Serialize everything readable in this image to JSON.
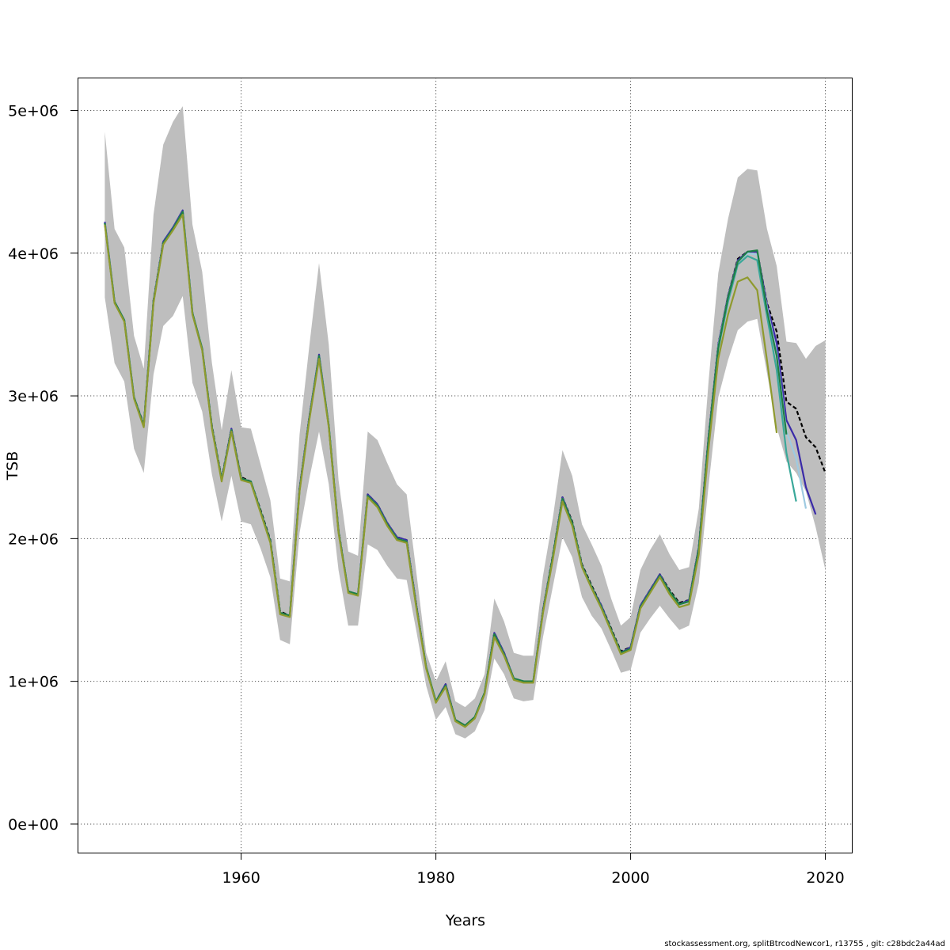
{
  "chart_data": {
    "type": "line",
    "title": "",
    "xlabel": "Years",
    "ylabel": "TSB",
    "xlim": [
      1943.2,
      2022.8
    ],
    "ylim": [
      -200000,
      5230000
    ],
    "x_ticks": [
      1960,
      1980,
      2000,
      2020
    ],
    "x_tick_labels": [
      "1960",
      "1980",
      "2000",
      "2020"
    ],
    "y_ticks": [
      0,
      1000000,
      2000000,
      3000000,
      4000000,
      5000000
    ],
    "y_tick_labels": [
      "0e+00",
      "1e+06",
      "2e+06",
      "3e+06",
      "4e+06",
      "5e+06"
    ],
    "grid": true,
    "legend": "none",
    "years": [
      1946,
      1947,
      1948,
      1949,
      1950,
      1951,
      1952,
      1953,
      1954,
      1955,
      1956,
      1957,
      1958,
      1959,
      1960,
      1961,
      1962,
      1963,
      1964,
      1965,
      1966,
      1967,
      1968,
      1969,
      1970,
      1971,
      1972,
      1973,
      1974,
      1975,
      1976,
      1977,
      1978,
      1979,
      1980,
      1981,
      1982,
      1983,
      1984,
      1985,
      1986,
      1987,
      1988,
      1989,
      1990,
      1991,
      1992,
      1993,
      1994,
      1995,
      1996,
      1997,
      1998,
      1999,
      2000,
      2001,
      2002,
      2003,
      2004,
      2005,
      2006,
      2007,
      2008,
      2009,
      2010,
      2011,
      2012,
      2013,
      2014,
      2015,
      2016,
      2017,
      2018,
      2019,
      2020
    ],
    "confidence_band": {
      "color": "#bebebe",
      "upper": [
        4850000,
        4170000,
        4040000,
        3420000,
        3190000,
        4270000,
        4760000,
        4920000,
        5030000,
        4200000,
        3870000,
        3230000,
        2760000,
        3180000,
        2780000,
        2770000,
        2520000,
        2270000,
        1720000,
        1700000,
        2730000,
        3350000,
        3930000,
        3360000,
        2410000,
        1910000,
        1880000,
        2750000,
        2690000,
        2530000,
        2380000,
        2310000,
        1760000,
        1200000,
        1000000,
        1140000,
        860000,
        820000,
        880000,
        1050000,
        1580000,
        1420000,
        1200000,
        1180000,
        1180000,
        1740000,
        2140000,
        2620000,
        2440000,
        2100000,
        1960000,
        1810000,
        1580000,
        1390000,
        1450000,
        1780000,
        1920000,
        2030000,
        1890000,
        1780000,
        1800000,
        2210000,
        3100000,
        3860000,
        4240000,
        4530000,
        4590000,
        4580000,
        4170000,
        3910000,
        3380000,
        3370000,
        3260000,
        3350000,
        3390000
      ],
      "lower": [
        3690000,
        3230000,
        3100000,
        2630000,
        2460000,
        3150000,
        3490000,
        3560000,
        3700000,
        3090000,
        2890000,
        2450000,
        2120000,
        2440000,
        2120000,
        2100000,
        1930000,
        1730000,
        1290000,
        1260000,
        2040000,
        2420000,
        2750000,
        2380000,
        1780000,
        1390000,
        1390000,
        1960000,
        1920000,
        1810000,
        1720000,
        1710000,
        1350000,
        970000,
        730000,
        820000,
        630000,
        600000,
        650000,
        800000,
        1160000,
        1050000,
        880000,
        860000,
        870000,
        1310000,
        1660000,
        2010000,
        1870000,
        1590000,
        1460000,
        1370000,
        1220000,
        1060000,
        1080000,
        1340000,
        1440000,
        1530000,
        1440000,
        1360000,
        1390000,
        1690000,
        2370000,
        2990000,
        3250000,
        3460000,
        3520000,
        3540000,
        3160000,
        2780000,
        2540000,
        2460000,
        2330000,
        2080000,
        1780000
      ]
    },
    "series": [
      {
        "color": "#000000",
        "dash": true,
        "x_start": 1946,
        "values": [
          4210000,
          3660000,
          3530000,
          2990000,
          2800000,
          3670000,
          4080000,
          4170000,
          4290000,
          3580000,
          3330000,
          2790000,
          2420000,
          2770000,
          2430000,
          2400000,
          2200000,
          1990000,
          1490000,
          1460000,
          2350000,
          2850000,
          3280000,
          2790000,
          2060000,
          1630000,
          1610000,
          2310000,
          2240000,
          2110000,
          2010000,
          1990000,
          1530000,
          1100000,
          860000,
          980000,
          730000,
          690000,
          750000,
          920000,
          1340000,
          1200000,
          1020000,
          1000000,
          1000000,
          1500000,
          1880000,
          2290000,
          2120000,
          1820000,
          1670000,
          1530000,
          1370000,
          1210000,
          1240000,
          1530000,
          1640000,
          1750000,
          1640000,
          1550000,
          1570000,
          1940000,
          2710000,
          3360000,
          3700000,
          3960000,
          4010000,
          4010000,
          3650000,
          3450000,
          2960000,
          2910000,
          2710000,
          2640000,
          2460000
        ]
      },
      {
        "color": "#3a2aa8",
        "dash": false,
        "x_start": 1946,
        "values": [
          4220000,
          3660000,
          3530000,
          2990000,
          2790000,
          3660000,
          4080000,
          4180000,
          4300000,
          3580000,
          3330000,
          2780000,
          2410000,
          2770000,
          2420000,
          2400000,
          2190000,
          1980000,
          1480000,
          1460000,
          2350000,
          2850000,
          3290000,
          2790000,
          2050000,
          1630000,
          1610000,
          2310000,
          2240000,
          2110000,
          2010000,
          1990000,
          1530000,
          1100000,
          860000,
          980000,
          730000,
          690000,
          750000,
          920000,
          1340000,
          1200000,
          1020000,
          1000000,
          1000000,
          1500000,
          1870000,
          2290000,
          2110000,
          1810000,
          1660000,
          1530000,
          1360000,
          1200000,
          1240000,
          1530000,
          1640000,
          1750000,
          1630000,
          1540000,
          1570000,
          1940000,
          2710000,
          3360000,
          3700000,
          3950000,
          4010000,
          4010000,
          3640000,
          3370000,
          2830000,
          2690000,
          2360000,
          2170000
        ]
      },
      {
        "color": "#9ecae1",
        "dash": false,
        "x_start": 1946,
        "values": [
          4210000,
          3660000,
          3530000,
          2990000,
          2790000,
          3660000,
          4070000,
          4170000,
          4290000,
          3580000,
          3330000,
          2780000,
          2410000,
          2760000,
          2420000,
          2400000,
          2190000,
          1980000,
          1480000,
          1460000,
          2340000,
          2840000,
          3280000,
          2790000,
          2050000,
          1630000,
          1610000,
          2300000,
          2230000,
          2100000,
          2000000,
          1980000,
          1520000,
          1100000,
          860000,
          970000,
          730000,
          690000,
          750000,
          920000,
          1330000,
          1190000,
          1020000,
          1000000,
          1000000,
          1490000,
          1870000,
          2280000,
          2110000,
          1810000,
          1660000,
          1520000,
          1360000,
          1200000,
          1230000,
          1520000,
          1630000,
          1740000,
          1630000,
          1540000,
          1560000,
          1930000,
          2700000,
          3350000,
          3690000,
          3940000,
          4000000,
          3990000,
          3620000,
          3300000,
          2750000,
          2560000,
          2210000
        ]
      },
      {
        "color": "#3aa89a",
        "dash": false,
        "x_start": 1946,
        "values": [
          4210000,
          3660000,
          3530000,
          2990000,
          2790000,
          3660000,
          4070000,
          4170000,
          4290000,
          3580000,
          3330000,
          2780000,
          2410000,
          2760000,
          2420000,
          2400000,
          2190000,
          1980000,
          1480000,
          1460000,
          2340000,
          2840000,
          3280000,
          2790000,
          2050000,
          1630000,
          1610000,
          2300000,
          2230000,
          2100000,
          2000000,
          1980000,
          1520000,
          1100000,
          860000,
          970000,
          730000,
          690000,
          750000,
          920000,
          1330000,
          1190000,
          1020000,
          1000000,
          1000000,
          1490000,
          1870000,
          2280000,
          2110000,
          1810000,
          1660000,
          1520000,
          1360000,
          1200000,
          1230000,
          1520000,
          1630000,
          1740000,
          1630000,
          1540000,
          1560000,
          1920000,
          2690000,
          3330000,
          3660000,
          3920000,
          3980000,
          3950000,
          3560000,
          3180000,
          2600000,
          2260000
        ]
      },
      {
        "color": "#1f7f45",
        "dash": false,
        "x_start": 1946,
        "values": [
          4210000,
          3660000,
          3530000,
          2990000,
          2790000,
          3660000,
          4070000,
          4170000,
          4290000,
          3580000,
          3330000,
          2780000,
          2410000,
          2760000,
          2420000,
          2400000,
          2190000,
          1980000,
          1480000,
          1460000,
          2340000,
          2840000,
          3280000,
          2790000,
          2050000,
          1630000,
          1610000,
          2300000,
          2230000,
          2100000,
          2000000,
          1980000,
          1520000,
          1100000,
          860000,
          970000,
          730000,
          690000,
          750000,
          920000,
          1330000,
          1190000,
          1020000,
          1000000,
          1000000,
          1490000,
          1870000,
          2280000,
          2110000,
          1810000,
          1660000,
          1520000,
          1360000,
          1200000,
          1230000,
          1520000,
          1630000,
          1740000,
          1630000,
          1540000,
          1560000,
          1930000,
          2700000,
          3340000,
          3690000,
          3940000,
          4010000,
          4020000,
          3600000,
          3280000,
          2730000
        ]
      },
      {
        "color": "#8f9a2e",
        "dash": false,
        "x_start": 1946,
        "values": [
          4200000,
          3650000,
          3520000,
          2980000,
          2780000,
          3650000,
          4060000,
          4160000,
          4270000,
          3570000,
          3320000,
          2770000,
          2400000,
          2750000,
          2410000,
          2390000,
          2180000,
          1970000,
          1470000,
          1450000,
          2330000,
          2830000,
          3260000,
          2780000,
          2040000,
          1620000,
          1600000,
          2290000,
          2220000,
          2090000,
          1990000,
          1970000,
          1510000,
          1090000,
          850000,
          960000,
          720000,
          680000,
          740000,
          910000,
          1310000,
          1180000,
          1010000,
          990000,
          990000,
          1480000,
          1850000,
          2260000,
          2090000,
          1800000,
          1650000,
          1510000,
          1350000,
          1190000,
          1220000,
          1510000,
          1620000,
          1730000,
          1610000,
          1520000,
          1540000,
          1890000,
          2630000,
          3260000,
          3570000,
          3800000,
          3830000,
          3740000,
          3250000,
          2740000
        ]
      }
    ]
  },
  "footer": "stockassessment.org, splitBtrcodNewcor1, r13755 , git: c28bdc2a44ad"
}
